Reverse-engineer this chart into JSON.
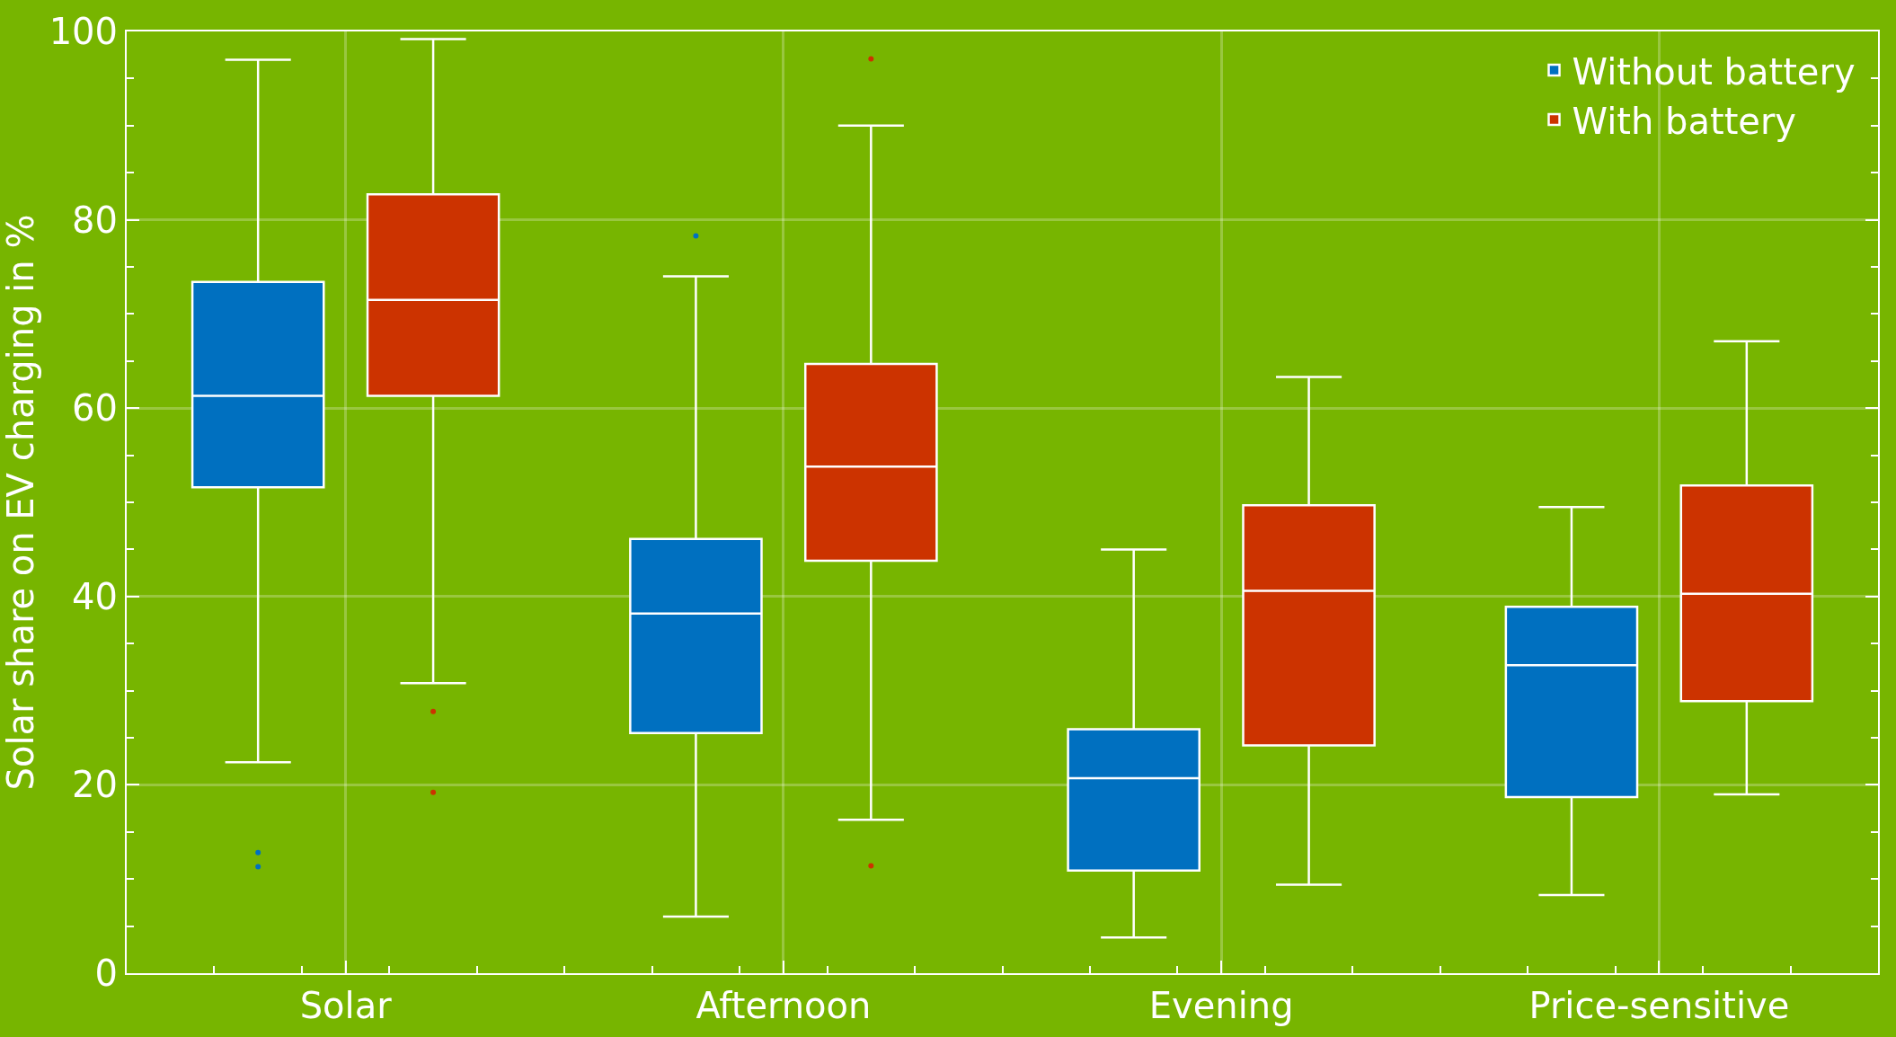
{
  "chart_data": {
    "type": "box",
    "ylabel": "Solar share on EV charging in %",
    "categories": [
      "Solar",
      "Afternoon",
      "Evening",
      "Price-sensitive"
    ],
    "series": [
      {
        "name": "Without battery",
        "color": "#0070c0",
        "boxes": [
          {
            "low": 22.4,
            "q1": 51.6,
            "median": 61.3,
            "q3": 73.4,
            "high": 97,
            "outliers": [
              11.3,
              12.8
            ]
          },
          {
            "low": 6,
            "q1": 25.5,
            "median": 38.2,
            "q3": 46.1,
            "high": 74,
            "outliers": [
              78.3
            ]
          },
          {
            "low": 3.8,
            "q1": 10.9,
            "median": 20.7,
            "q3": 25.9,
            "high": 45
          },
          {
            "low": 8.3,
            "q1": 18.7,
            "median": 32.7,
            "q3": 38.9,
            "high": 49.5
          }
        ]
      },
      {
        "name": "With battery",
        "color": "#cc3300",
        "boxes": [
          {
            "low": 30.8,
            "q1": 61.3,
            "median": 71.5,
            "q3": 82.7,
            "high": 99.2,
            "outliers": [
              27.8,
              19.2
            ]
          },
          {
            "low": 16.3,
            "q1": 43.8,
            "median": 53.8,
            "q3": 64.7,
            "high": 90,
            "outliers": [
              97.1,
              11.4
            ]
          },
          {
            "low": 9.4,
            "q1": 24.2,
            "median": 40.6,
            "q3": 49.7,
            "high": 63.3
          },
          {
            "low": 19,
            "q1": 28.9,
            "median": 40.3,
            "q3": 51.8,
            "high": 67.1
          }
        ]
      }
    ],
    "ylim": [
      0,
      100
    ],
    "yticks": [
      0,
      20,
      40,
      60,
      80,
      100
    ],
    "grid": true,
    "legend": "top right"
  }
}
